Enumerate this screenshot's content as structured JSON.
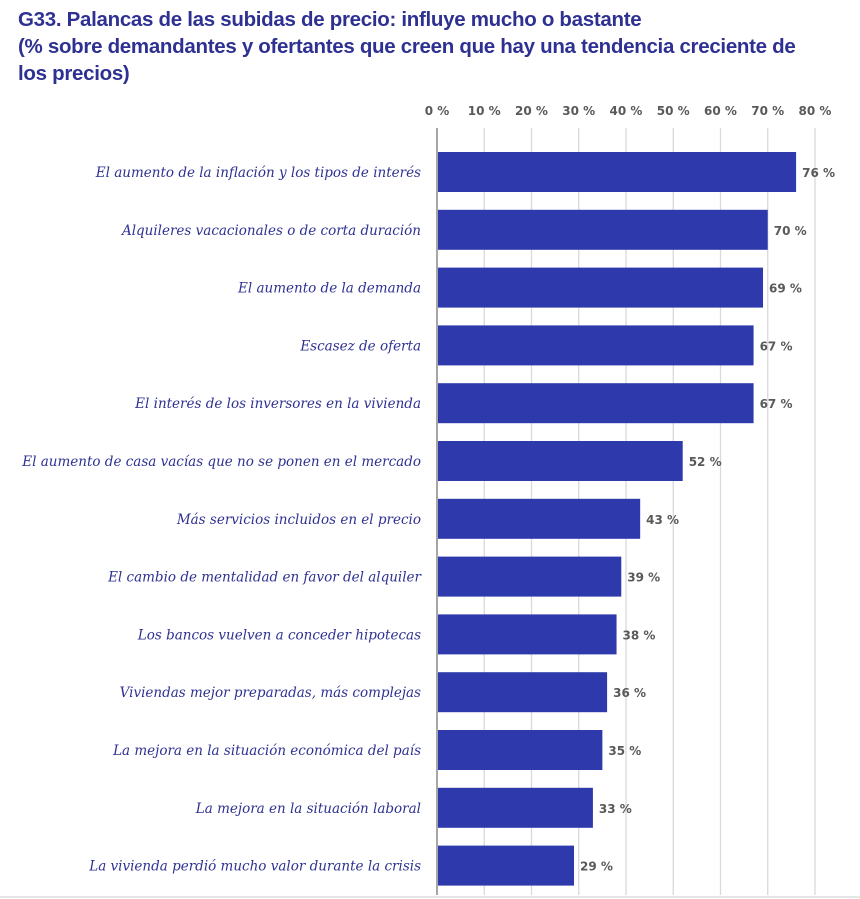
{
  "chart_data": {
    "type": "bar",
    "orientation": "horizontal",
    "title": "G33. Palancas de las subidas de precio: influye mucho o bastante",
    "subtitle_lines": [
      "(% sobre demandantes y ofertantes que creen que hay una tendencia creciente de",
      "los precios)"
    ],
    "xlabel": "",
    "ylabel": "",
    "xlim": [
      0,
      80
    ],
    "x_ticks": [
      0,
      10,
      20,
      30,
      40,
      50,
      60,
      70,
      80
    ],
    "x_tick_labels": [
      "0 %",
      "10 %",
      "20 %",
      "30 %",
      "40 %",
      "50 %",
      "60 %",
      "70 %",
      "80 %"
    ],
    "x_axis_position": "top",
    "grid": true,
    "legend": null,
    "bar_color": "#2e3aac",
    "categories": [
      "El aumento de la inflación y los tipos de interés",
      "Alquileres vacacionales o de corta duración",
      "El aumento de la demanda",
      "Escasez de oferta",
      "El interés de los inversores en la vivienda",
      "El aumento de casa vacías que no se ponen en el mercado",
      "Más servicios incluidos en el precio",
      "El cambio de mentalidad en favor del alquiler",
      "Los bancos vuelven a conceder hipotecas",
      "Viviendas mejor preparadas, más complejas",
      "La mejora en la situación económica del país",
      "La mejora en la  situación laboral",
      "La vivienda perdió mucho valor durante la crisis"
    ],
    "values": [
      76,
      70,
      69,
      67,
      67,
      52,
      43,
      39,
      38,
      36,
      35,
      33,
      29
    ],
    "value_labels": [
      "76 %",
      "70 %",
      "69 %",
      "67 %",
      "67 %",
      "52 %",
      "43 %",
      "39 %",
      "38 %",
      "36 %",
      "35 %",
      "33 %",
      "29 %"
    ]
  }
}
